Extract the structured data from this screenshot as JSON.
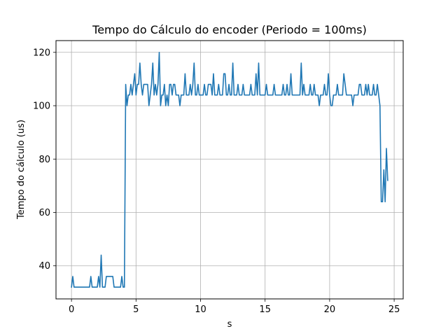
{
  "chart_data": {
    "type": "line",
    "title": "Tempo do Cálculo do encoder (Periodo = 100ms)",
    "xlabel": "s",
    "ylabel": "Tempo do cálculo (us)",
    "xlim": [
      -1.2,
      25.7
    ],
    "ylim": [
      27.6,
      124.4
    ],
    "xticks": [
      0,
      5,
      10,
      15,
      20,
      25
    ],
    "yticks": [
      40,
      60,
      80,
      100,
      120
    ],
    "grid": true,
    "line_color": "#1f77b4",
    "series": [
      {
        "x": [
          0,
          0.1,
          0.2,
          0.3,
          0.4,
          0.5,
          0.6,
          0.7,
          0.8,
          0.9,
          1.0,
          1.1,
          1.2,
          1.3,
          1.4,
          1.5,
          1.6,
          1.7,
          1.8,
          1.9,
          2.0,
          2.1,
          2.2,
          2.3,
          2.4,
          2.5,
          2.6,
          2.7,
          2.8,
          2.9,
          3.0,
          3.1,
          3.2,
          3.3,
          3.4,
          3.5,
          3.6,
          3.7,
          3.8,
          3.9,
          4.0,
          4.1,
          4.2,
          4.3,
          4.4,
          4.5,
          4.6,
          4.7,
          4.8,
          4.9,
          5.0,
          5.1,
          5.2,
          5.3,
          5.4,
          5.5,
          5.6,
          5.7,
          5.8,
          5.9,
          6.0,
          6.1,
          6.2,
          6.3,
          6.4,
          6.5,
          6.6,
          6.7,
          6.8,
          6.9,
          7.0,
          7.1,
          7.2,
          7.3,
          7.4,
          7.5,
          7.6,
          7.7,
          7.8,
          7.9,
          8.0,
          8.1,
          8.2,
          8.3,
          8.4,
          8.5,
          8.6,
          8.7,
          8.8,
          8.9,
          9.0,
          9.1,
          9.2,
          9.3,
          9.4,
          9.5,
          9.6,
          9.7,
          9.8,
          9.9,
          10.0,
          10.1,
          10.2,
          10.3,
          10.4,
          10.5,
          10.6,
          10.7,
          10.8,
          10.9,
          11.0,
          11.1,
          11.2,
          11.3,
          11.4,
          11.5,
          11.6,
          11.7,
          11.8,
          11.9,
          12.0,
          12.1,
          12.2,
          12.3,
          12.4,
          12.5,
          12.6,
          12.7,
          12.8,
          12.9,
          13.0,
          13.1,
          13.2,
          13.3,
          13.4,
          13.5,
          13.6,
          13.7,
          13.8,
          13.9,
          14.0,
          14.1,
          14.2,
          14.3,
          14.4,
          14.5,
          14.6,
          14.7,
          14.8,
          14.9,
          15.0,
          15.1,
          15.2,
          15.3,
          15.4,
          15.5,
          15.6,
          15.7,
          15.8,
          15.9,
          16.0,
          16.1,
          16.2,
          16.3,
          16.4,
          16.5,
          16.6,
          16.7,
          16.8,
          16.9,
          17.0,
          17.1,
          17.2,
          17.3,
          17.4,
          17.5,
          17.6,
          17.7,
          17.8,
          17.9,
          18.0,
          18.1,
          18.2,
          18.3,
          18.4,
          18.5,
          18.6,
          18.7,
          18.8,
          18.9,
          19.0,
          19.1,
          19.2,
          19.3,
          19.4,
          19.5,
          19.6,
          19.7,
          19.8,
          19.9,
          20.0,
          20.1,
          20.2,
          20.3,
          20.4,
          20.5,
          20.6,
          20.7,
          20.8,
          20.9,
          21.0,
          21.1,
          21.2,
          21.3,
          21.4,
          21.5,
          21.6,
          21.7,
          21.8,
          21.9,
          22.0,
          22.1,
          22.2,
          22.3,
          22.4,
          22.5,
          22.6,
          22.7,
          22.8,
          22.9,
          23.0,
          23.1,
          23.2,
          23.3,
          23.4,
          23.5,
          23.6,
          23.7,
          23.8,
          23.9,
          24.0,
          24.1,
          24.2,
          24.3,
          24.4,
          24.5
        ],
        "y": [
          32,
          36,
          32,
          32,
          32,
          32,
          32,
          32,
          32,
          32,
          32,
          32,
          32,
          32,
          32,
          36,
          32,
          32,
          32,
          32,
          32,
          36,
          32,
          44,
          32,
          32,
          32,
          36,
          36,
          36,
          36,
          36,
          36,
          32,
          32,
          32,
          32,
          32,
          32,
          36,
          32,
          32,
          108,
          100,
          104,
          104,
          108,
          104,
          108,
          112,
          104,
          108,
          108,
          116,
          108,
          104,
          108,
          108,
          108,
          108,
          100,
          104,
          108,
          116,
          104,
          108,
          104,
          108,
          120,
          100,
          104,
          104,
          108,
          100,
          104,
          100,
          108,
          108,
          104,
          108,
          108,
          104,
          104,
          104,
          100,
          104,
          104,
          104,
          112,
          104,
          104,
          104,
          108,
          104,
          108,
          116,
          104,
          104,
          108,
          104,
          104,
          104,
          104,
          108,
          104,
          104,
          108,
          108,
          108,
          104,
          112,
          104,
          104,
          104,
          108,
          104,
          104,
          104,
          112,
          112,
          104,
          104,
          108,
          104,
          104,
          116,
          104,
          104,
          104,
          108,
          104,
          104,
          104,
          108,
          104,
          104,
          104,
          104,
          104,
          108,
          104,
          104,
          104,
          112,
          104,
          116,
          104,
          104,
          104,
          104,
          104,
          108,
          104,
          104,
          104,
          104,
          104,
          108,
          104,
          104,
          104,
          104,
          104,
          104,
          108,
          104,
          104,
          108,
          104,
          104,
          112,
          104,
          104,
          104,
          104,
          104,
          104,
          104,
          116,
          104,
          108,
          104,
          104,
          104,
          104,
          108,
          104,
          104,
          108,
          104,
          104,
          104,
          100,
          104,
          104,
          104,
          108,
          104,
          104,
          112,
          104,
          100,
          100,
          104,
          104,
          104,
          108,
          104,
          104,
          104,
          104,
          112,
          108,
          104,
          104,
          104,
          104,
          104,
          100,
          104,
          104,
          104,
          104,
          108,
          108,
          104,
          104,
          104,
          108,
          104,
          108,
          104,
          104,
          104,
          108,
          104,
          104,
          108,
          104,
          100,
          64,
          64,
          76,
          64,
          84,
          72
        ]
      }
    ]
  }
}
